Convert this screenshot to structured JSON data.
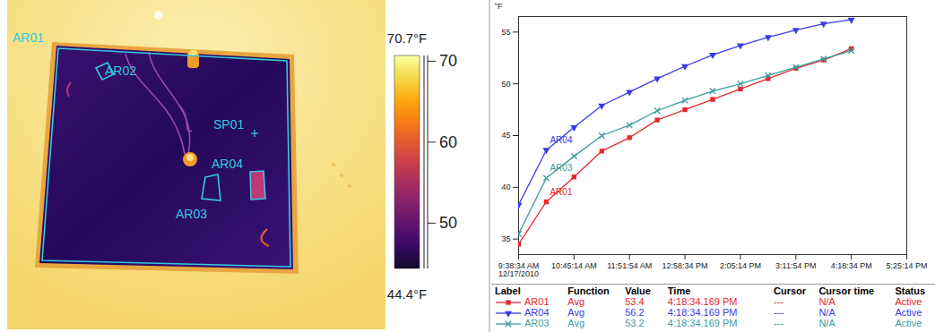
{
  "chart_data": {
    "type": "line",
    "y_label": "°F",
    "x": [
      "2010-12-17T09:38:34",
      "2010-12-17T10:11:54",
      "2010-12-17T10:45:14",
      "2010-12-17T11:18:34",
      "2010-12-17T11:51:54",
      "2010-12-17T12:25:14",
      "2010-12-17T12:58:34",
      "2010-12-17T13:31:54",
      "2010-12-17T14:05:14",
      "2010-12-17T14:38:34",
      "2010-12-17T15:11:54",
      "2010-12-17T15:45:14",
      "2010-12-17T16:18:34"
    ],
    "series": [
      {
        "name": "AR01",
        "color": "#e8262a",
        "marker": "square",
        "values": [
          34.5,
          38.6,
          41.0,
          43.5,
          44.8,
          46.5,
          47.5,
          48.5,
          49.5,
          50.5,
          51.5,
          52.3,
          53.4
        ]
      },
      {
        "name": "AR04",
        "color": "#3b3be8",
        "marker": "triangle-down",
        "values": [
          38.3,
          43.6,
          45.8,
          47.9,
          49.2,
          50.5,
          51.7,
          52.8,
          53.7,
          54.5,
          55.2,
          55.8,
          56.2
        ]
      },
      {
        "name": "AR03",
        "color": "#3d9b9b",
        "marker": "times",
        "values": [
          35.5,
          40.9,
          43.0,
          45.0,
          46.0,
          47.4,
          48.4,
          49.3,
          50.0,
          50.8,
          51.6,
          52.4,
          53.2
        ]
      }
    ],
    "xlim": [
      "2010-12-17T09:38:34",
      "2010-12-17T17:25:14"
    ],
    "xticks": [
      {
        "value": "2010-12-17T09:38:34",
        "label": "9:38:34 AM\n12/17/2010"
      },
      {
        "value": "2010-12-17T10:45:14",
        "label": "10:45:14 AM"
      },
      {
        "value": "2010-12-17T11:51:54",
        "label": "11:51:54 AM"
      },
      {
        "value": "2010-12-17T12:58:34",
        "label": "12:58:34 PM"
      },
      {
        "value": "2010-12-17T14:05:14",
        "label": "2:05:14 PM"
      },
      {
        "value": "2010-12-17T15:11:54",
        "label": "3:11:54 PM"
      },
      {
        "value": "2010-12-17T16:18:34",
        "label": "4:18:34 PM"
      },
      {
        "value": "2010-12-17T17:25:14",
        "label": "5:25:14 PM"
      }
    ],
    "ylim": [
      33.5,
      56.5
    ],
    "yticks": [
      35,
      40,
      45,
      50,
      55
    ],
    "grid": false
  },
  "legend_table": {
    "columns": [
      "Label",
      "Function",
      "Value",
      "Time",
      "Cursor",
      "Cursor time",
      "Status"
    ],
    "rows": [
      [
        "AR01",
        "Avg",
        53.4,
        "4:18:34.169 PM",
        "---",
        "N/A",
        "Active"
      ],
      [
        "AR04",
        "Avg",
        56.2,
        "4:18:34.169 PM",
        "---",
        "N/A",
        "Active"
      ],
      [
        "AR03",
        "Avg",
        53.2,
        "4:18:34.169 PM",
        "---",
        "N/A",
        "Active"
      ]
    ]
  },
  "thermal_image": {
    "labels": [
      "AR01",
      "AR02",
      "SP01",
      "AR04",
      "AR03"
    ],
    "color_bar": {
      "range": [
        44.4,
        70.7
      ],
      "range_labels": [
        "44.4°F",
        "70.7°F"
      ],
      "ticks": [
        50,
        60,
        70
      ]
    }
  }
}
